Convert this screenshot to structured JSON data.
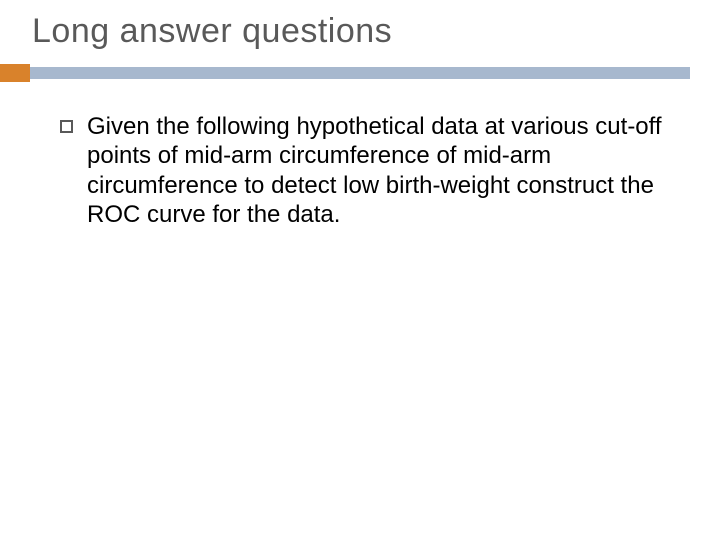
{
  "slide": {
    "title": "Long answer questions",
    "body_text": "Given the following hypothetical data at various cut-off points of mid-arm circumference of mid-arm circumference to detect low birth-weight construct the ROC curve for the data.",
    "accent_color": "#d9822b",
    "rule_color": "#a7b8ce",
    "title_color": "#595959",
    "text_color": "#000000",
    "bullet_border_color": "#595959",
    "background_color": "#ffffff",
    "title_fontsize": 34,
    "body_fontsize": 24
  }
}
